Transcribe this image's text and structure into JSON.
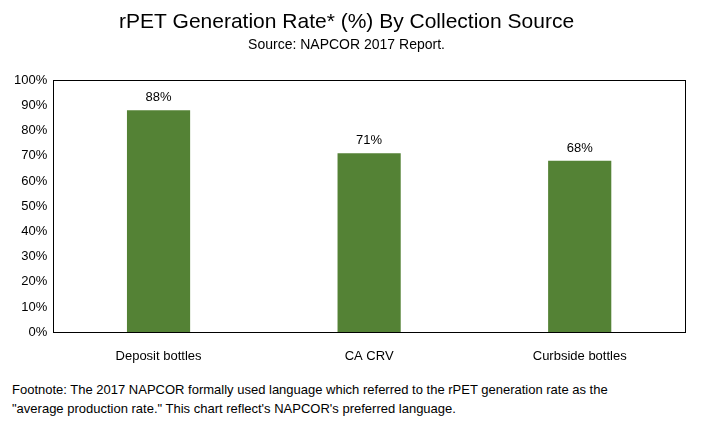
{
  "chart_data": {
    "type": "bar",
    "title": "rPET Generation Rate* (%) By Collection Source",
    "subtitle": "Source: NAPCOR 2017 Report.",
    "categories": [
      "Deposit bottles",
      "CA CRV",
      "Curbside bottles"
    ],
    "values": [
      88,
      71,
      68
    ],
    "value_labels": [
      "88%",
      "71%",
      "68%"
    ],
    "color": "#548235",
    "ylim": [
      0,
      100
    ],
    "yticks": [
      {
        "value": 0,
        "label": "0%"
      },
      {
        "value": 10,
        "label": "10%"
      },
      {
        "value": 20,
        "label": "20%"
      },
      {
        "value": 30,
        "label": "30%"
      },
      {
        "value": 40,
        "label": "40%"
      },
      {
        "value": 50,
        "label": "50%"
      },
      {
        "value": 60,
        "label": "60%"
      },
      {
        "value": 70,
        "label": "70%"
      },
      {
        "value": 80,
        "label": "80%"
      },
      {
        "value": 90,
        "label": "90%"
      },
      {
        "value": 100,
        "label": "100%"
      }
    ],
    "grid": false,
    "data_labels": true,
    "annotations": [
      "Footnote: The 2017 NAPCOR formally used language which referred to the rPET generation rate as the \"average production rate.\" This chart reflect's NAPCOR's preferred language."
    ]
  }
}
